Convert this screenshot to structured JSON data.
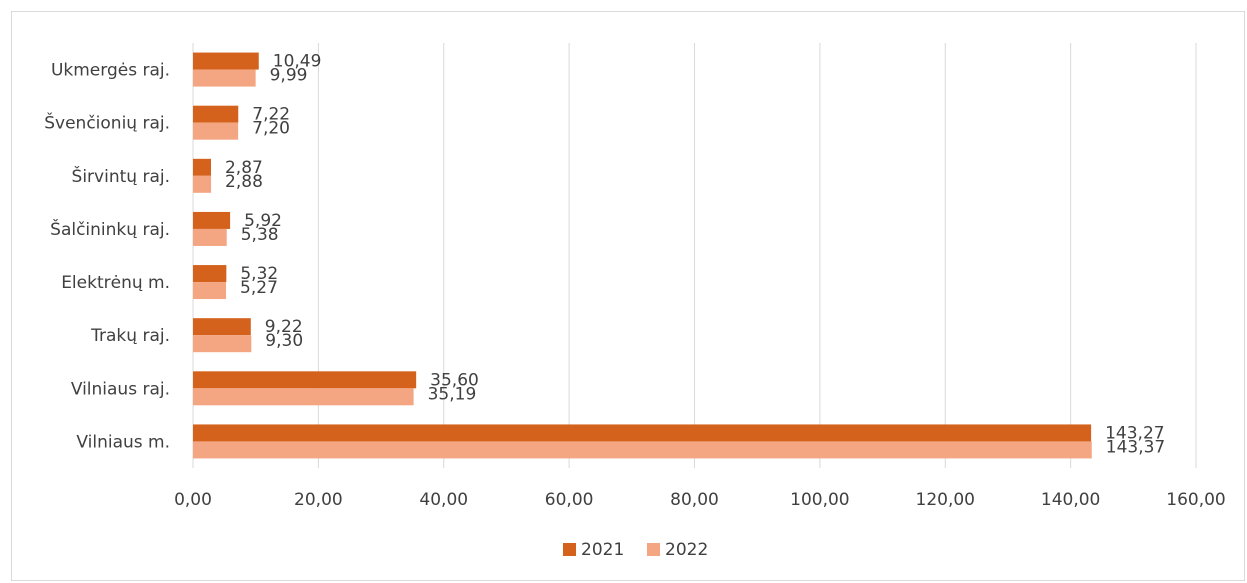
{
  "chart_data": {
    "type": "bar",
    "orientation": "horizontal",
    "categories": [
      "Ukmergės raj.",
      "Švenčionių raj.",
      "Širvintų raj.",
      "Šalčininkų raj.",
      "Elektrėnų m.",
      "Trakų raj.",
      "Vilniaus raj.",
      "Vilniaus m."
    ],
    "series": [
      {
        "name": "2021",
        "color": "#d4621c",
        "values": [
          10.49,
          7.22,
          2.87,
          5.92,
          5.32,
          9.22,
          35.6,
          143.27
        ],
        "labels": [
          "10,49",
          "7,22",
          "2,87",
          "5,92",
          "5,32",
          "9,22",
          "35,60",
          "143,27"
        ]
      },
      {
        "name": "2022",
        "color": "#f4a582",
        "values": [
          9.99,
          7.2,
          2.88,
          5.38,
          5.27,
          9.3,
          35.19,
          143.37
        ],
        "labels": [
          "9,99",
          "7,20",
          "2,88",
          "5,38",
          "5,27",
          "9,30",
          "35,19",
          "143,37"
        ]
      }
    ],
    "xlim": [
      0,
      160
    ],
    "x_ticks": [
      0,
      20,
      40,
      60,
      80,
      100,
      120,
      140,
      160
    ],
    "x_tick_labels": [
      "0,00",
      "20,00",
      "40,00",
      "60,00",
      "80,00",
      "100,00",
      "120,00",
      "140,00",
      "160,00"
    ],
    "grid": "vertical",
    "legend_position": "bottom",
    "title": "",
    "xlabel": "",
    "ylabel": ""
  }
}
